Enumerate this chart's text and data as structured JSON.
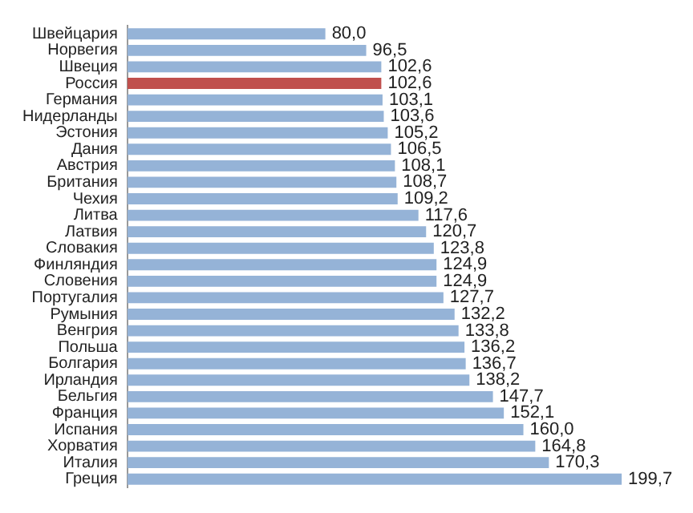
{
  "chart_data": {
    "type": "bar",
    "orientation": "horizontal",
    "categories": [
      "Швейцария",
      "Норвегия",
      "Швеция",
      "Россия",
      "Германия",
      "Нидерланды",
      "Эстония",
      "Дания",
      "Австрия",
      "Британия",
      "Чехия",
      "Литва",
      "Латвия",
      "Словакия",
      "Финляндия",
      "Словения",
      "Португалия",
      "Румыния",
      "Венгрия",
      "Польша",
      "Болгария",
      "Ирландия",
      "Бельгия",
      "Франция",
      "Испания",
      "Хорватия",
      "Италия",
      "Греция"
    ],
    "values": [
      80.0,
      96.5,
      102.6,
      102.6,
      103.1,
      103.6,
      105.2,
      106.5,
      108.1,
      108.7,
      109.2,
      117.6,
      120.7,
      123.8,
      124.9,
      124.9,
      127.7,
      132.2,
      133.8,
      136.2,
      136.7,
      138.2,
      147.7,
      152.1,
      160.0,
      164.8,
      170.3,
      199.7
    ],
    "value_labels": [
      "80,0",
      "96,5",
      "102,6",
      "102,6",
      "103,1",
      "103,6",
      "105,2",
      "106,5",
      "108,1",
      "108,7",
      "109,2",
      "117,6",
      "120,7",
      "123,8",
      "124,9",
      "124,9",
      "127,7",
      "132,2",
      "133,8",
      "136,2",
      "136,7",
      "138,2",
      "147,7",
      "152,1",
      "160,0",
      "164,8",
      "170,3",
      "199,7"
    ],
    "colors": [
      "#95b3d7",
      "#95b3d7",
      "#95b3d7",
      "#c0504d",
      "#95b3d7",
      "#95b3d7",
      "#95b3d7",
      "#95b3d7",
      "#95b3d7",
      "#95b3d7",
      "#95b3d7",
      "#95b3d7",
      "#95b3d7",
      "#95b3d7",
      "#95b3d7",
      "#95b3d7",
      "#95b3d7",
      "#95b3d7",
      "#95b3d7",
      "#95b3d7",
      "#95b3d7",
      "#95b3d7",
      "#95b3d7",
      "#95b3d7",
      "#95b3d7",
      "#95b3d7",
      "#95b3d7",
      "#95b3d7"
    ],
    "xlim": [
      0,
      200
    ],
    "tick_labels": "y",
    "grid": false,
    "legend": false
  }
}
